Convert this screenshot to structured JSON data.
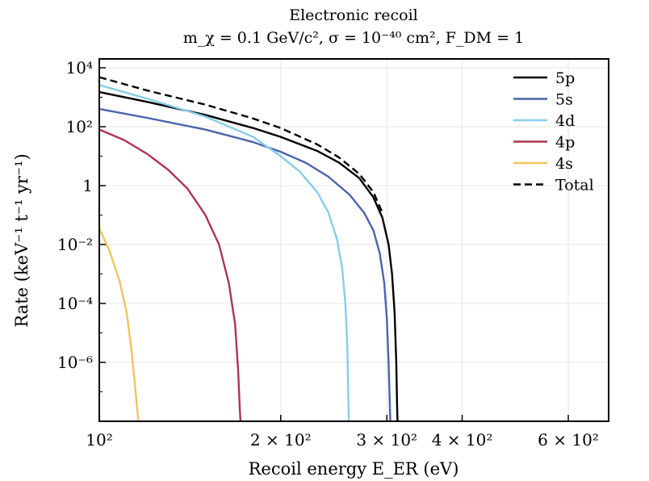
{
  "chart_data": {
    "type": "line",
    "title": "Electronic recoil",
    "subtitle": "m_χ = 0.1 GeV/c², σ = 10⁻⁴⁰ cm², F_DM = 1",
    "xlabel": "Recoil energy E_ER (eV)",
    "ylabel": "Rate (keV⁻¹ t⁻¹ yr⁻¹)",
    "xscale": "log",
    "yscale": "log",
    "xlim": [
      100,
      700
    ],
    "ylim": [
      1e-08,
      20000
    ],
    "grid": true,
    "legend_position": "top-right",
    "x_ticks": [
      {
        "value": 100,
        "label": "10²"
      },
      {
        "value": 200,
        "label": "2 × 10²"
      },
      {
        "value": 300,
        "label": "3 × 10²"
      },
      {
        "value": 400,
        "label": "4 × 10²"
      },
      {
        "value": 600,
        "label": "6 × 10²"
      }
    ],
    "y_ticks": [
      {
        "value": 1e-06,
        "label": "10⁻⁶"
      },
      {
        "value": 0.0001,
        "label": "10⁻⁴"
      },
      {
        "value": 0.01,
        "label": "10⁻²"
      },
      {
        "value": 1,
        "label": "1"
      },
      {
        "value": 100,
        "label": "10²"
      },
      {
        "value": 10000,
        "label": "10⁴"
      }
    ],
    "series": [
      {
        "name": "5p",
        "color": "#000000",
        "dash": "solid",
        "x": [
          100,
          120,
          150,
          180,
          200,
          230,
          250,
          270,
          285,
          295,
          302,
          306,
          309,
          311,
          312,
          312.5
        ],
        "y": [
          1500,
          700,
          250,
          90,
          45,
          15,
          6,
          1.8,
          0.4,
          0.08,
          0.01,
          0.001,
          5e-05,
          1e-06,
          3e-08,
          1e-08
        ]
      },
      {
        "name": "5s",
        "color": "#4a63ab",
        "dash": "solid",
        "x": [
          100,
          120,
          150,
          180,
          200,
          220,
          240,
          260,
          275,
          285,
          292,
          297,
          300,
          302,
          303.5,
          304
        ],
        "y": [
          400,
          200,
          80,
          30,
          14,
          6,
          2,
          0.5,
          0.12,
          0.03,
          0.005,
          0.0005,
          3e-05,
          1e-06,
          3e-08,
          1e-08
        ]
      },
      {
        "name": "4d",
        "color": "#87cdea",
        "dash": "solid",
        "x": [
          100,
          120,
          150,
          180,
          200,
          215,
          230,
          240,
          248,
          253,
          256,
          258,
          259,
          259.5
        ],
        "y": [
          2600,
          900,
          220,
          45,
          10,
          3,
          0.6,
          0.12,
          0.015,
          0.0015,
          0.0001,
          3e-06,
          5e-08,
          1e-08
        ]
      },
      {
        "name": "4p",
        "color": "#ad3550",
        "dash": "solid",
        "x": [
          100,
          110,
          120,
          130,
          140,
          150,
          158,
          164,
          168,
          170,
          171,
          171.5
        ],
        "y": [
          80,
          35,
          12,
          3.5,
          0.8,
          0.1,
          0.01,
          0.0005,
          2e-05,
          5e-07,
          3e-08,
          1e-08
        ]
      },
      {
        "name": "4s",
        "color": "#f2c45a",
        "dash": "solid",
        "x": [
          100,
          104,
          108,
          111,
          113,
          114.5,
          115.5,
          116,
          116.2
        ],
        "y": [
          0.035,
          0.006,
          0.0006,
          5e-05,
          3e-06,
          2e-07,
          3e-08,
          1.2e-08,
          1e-08
        ]
      },
      {
        "name": "Total",
        "color": "#000000",
        "dash": "dashed",
        "x": [
          100,
          120,
          150,
          180,
          200,
          230,
          250,
          270,
          285,
          295
        ],
        "y": [
          4800,
          1700,
          560,
          190,
          90,
          25,
          9,
          2.5,
          0.6,
          0.12
        ]
      }
    ]
  }
}
